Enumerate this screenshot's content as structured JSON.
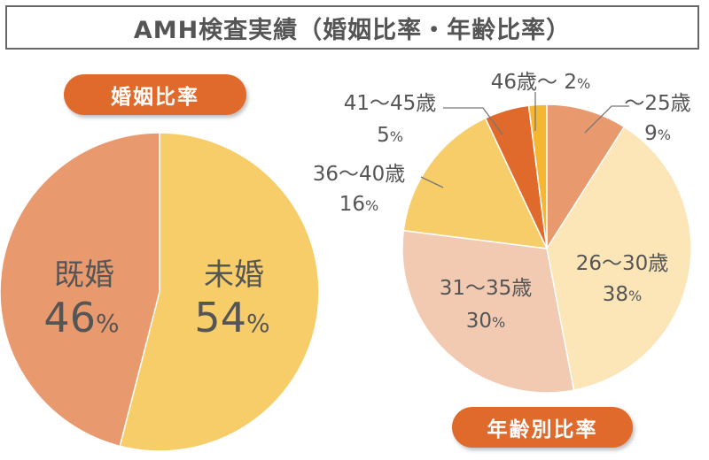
{
  "title": "AMH検査実績（婚姻比率・年齢比率）",
  "colors": {
    "pill": "#E06A2C",
    "title_border": "#666666",
    "label_text": "#555555"
  },
  "chart_data": [
    {
      "type": "pie",
      "title": "婚姻比率",
      "unit": "%",
      "slices": [
        {
          "label": "未婚",
          "value": 54,
          "display": "54",
          "color": "#F7CD6A"
        },
        {
          "label": "既婚",
          "value": 46,
          "display": "46",
          "color": "#E89A6E"
        }
      ]
    },
    {
      "type": "pie",
      "title": "年齢別比率",
      "unit": "%",
      "slices": [
        {
          "label": "〜25歳",
          "value": 9,
          "display": "9",
          "color": "#E89A6E"
        },
        {
          "label": "26〜30歳",
          "value": 38,
          "display": "38",
          "color": "#FCE6B8"
        },
        {
          "label": "31〜35歳",
          "value": 30,
          "display": "30",
          "color": "#F2CAB1"
        },
        {
          "label": "36〜40歳",
          "value": 16,
          "display": "16",
          "color": "#F7CD6A"
        },
        {
          "label": "41〜45歳",
          "value": 5,
          "display": "5",
          "color": "#E06A2C"
        },
        {
          "label": "46歳〜",
          "value": 2,
          "display": "2",
          "color": "#F5B731"
        }
      ]
    }
  ]
}
